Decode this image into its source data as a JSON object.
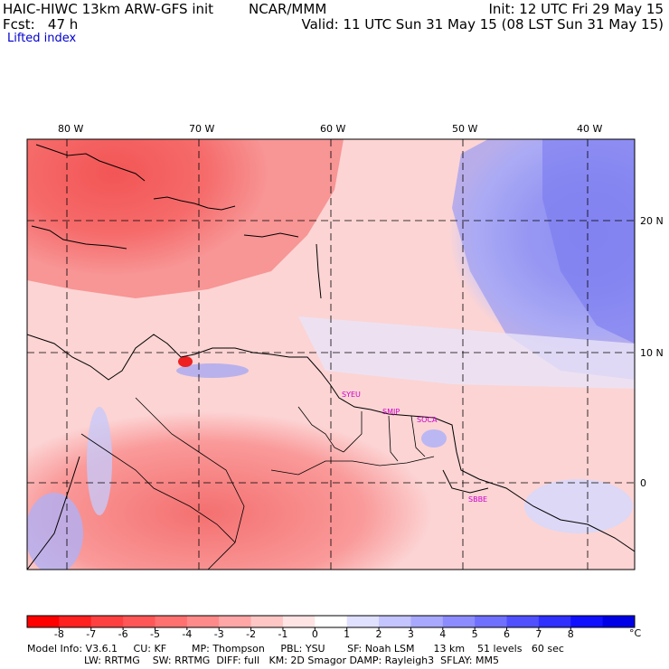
{
  "header": {
    "model_title": "HAIC-HIWC 13km ARW-GFS init",
    "org": "NCAR/MMM",
    "init": "Init: 12 UTC Fri 29 May 15",
    "fcst": "Fcst:   47 h",
    "valid": "Valid: 11 UTC Sun 31 May 15 (08 LST Sun 31 May 15)",
    "field": "Lifted index"
  },
  "map": {
    "lon_labels": [
      "80 W",
      "70 W",
      "60 W",
      "50 W",
      "40 W"
    ],
    "lat_labels": [
      "20 N",
      "10 N",
      "0"
    ],
    "stations": [
      "SYEU",
      "SMJP",
      "SOCA",
      "SBBE"
    ]
  },
  "colorbar": {
    "ticks": [
      "-8",
      "-7",
      "-6",
      "-5",
      "-4",
      "-3",
      "-2",
      "-1",
      "0",
      "1",
      "2",
      "3",
      "4",
      "5",
      "6",
      "7",
      "8"
    ],
    "unit": "°C",
    "colors": [
      "#ff0000",
      "#ff2020",
      "#ff4040",
      "#ff5757",
      "#ff7070",
      "#ff8a8a",
      "#ffa6a6",
      "#ffc6c6",
      "#ffe4e4",
      "#ffffff",
      "#e0e0ff",
      "#c4c4ff",
      "#a8a8ff",
      "#8c8cff",
      "#7070ff",
      "#5050ff",
      "#3030ff",
      "#1010ff",
      "#0000e6"
    ]
  },
  "footer": {
    "line1": "Model Info: V3.6.1     CU: KF        MP: Thompson     PBL: YSU       SF: Noah LSM      13 km    51 levels   60 sec",
    "line2": "                  LW: RRTMG    SW: RRTMG  DIFF: full   KM: 2D Smagor DAMP: Rayleigh3  SFLAY: MM5"
  }
}
